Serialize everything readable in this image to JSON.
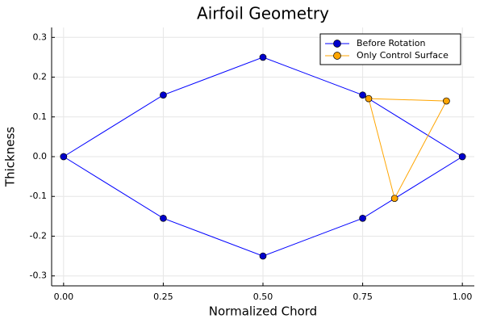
{
  "chart_data": {
    "type": "line",
    "title": "Airfoil Geometry",
    "xlabel": "Normalized Chord",
    "ylabel": "Thickness",
    "xlim": [
      -0.03,
      1.03
    ],
    "ylim": [
      -0.325,
      0.325
    ],
    "xticks": [
      0.0,
      0.25,
      0.5,
      0.75,
      1.0
    ],
    "xtick_labels": [
      "0.00",
      "0.25",
      "0.50",
      "0.75",
      "1.00"
    ],
    "yticks": [
      -0.3,
      -0.2,
      -0.1,
      0.0,
      0.1,
      0.2,
      0.3
    ],
    "ytick_labels": [
      "-0.3",
      "-0.2",
      "-0.1",
      "0.0",
      "0.1",
      "0.2",
      "0.3"
    ],
    "grid": true,
    "legend_position": "top-right",
    "series": [
      {
        "name": "Before Rotation",
        "color": "#0000ff",
        "marker_color": "#0000cc",
        "x": [
          0.0,
          0.25,
          0.5,
          0.75,
          1.0,
          0.75,
          0.5,
          0.25,
          0.0
        ],
        "y": [
          0.0,
          0.155,
          0.25,
          0.155,
          0.0,
          -0.155,
          -0.25,
          -0.155,
          0.0
        ]
      },
      {
        "name": "Only Control Surface",
        "color": "#ffa500",
        "marker_color": "#ffa500",
        "x": [
          0.765,
          0.96,
          0.83,
          0.765
        ],
        "y": [
          0.146,
          0.14,
          -0.105,
          0.146
        ]
      }
    ]
  }
}
